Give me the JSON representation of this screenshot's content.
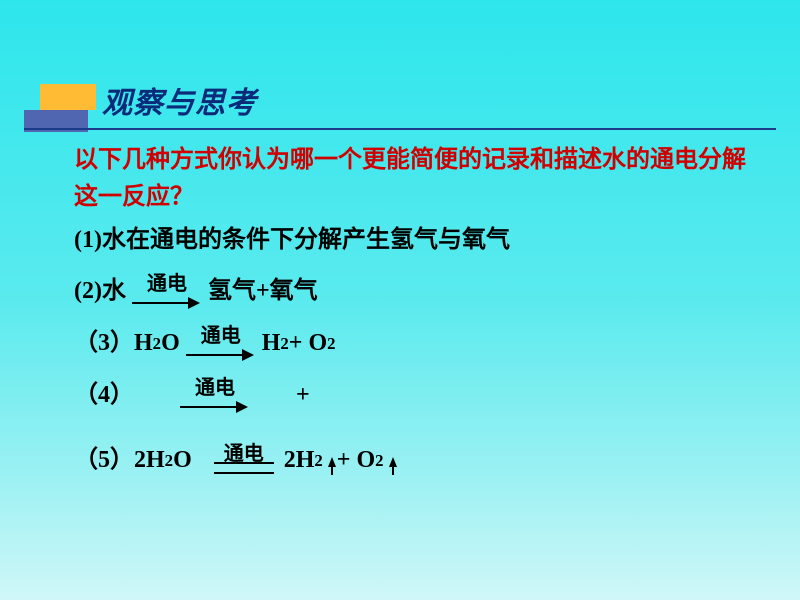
{
  "colors": {
    "bg_gradient_start": "#2de6ec",
    "bg_gradient_end": "#d0f7f8",
    "title_color": "#0a2a7a",
    "prompt_color": "#d00000",
    "body_color": "#000000",
    "deco_top": "#ffbb33",
    "deco_bottom": "#5166b0",
    "rule_color": "#1a3a8a"
  },
  "typography": {
    "title_fontsize": 30,
    "prompt_fontsize": 24,
    "body_fontsize": 24,
    "arrow_label_fontsize": 20,
    "title_font": "KaiTi",
    "body_font": "SimSun"
  },
  "title": "观察与思考",
  "prompt": "以下几种方式你认为哪一个更能简便的记录和描述水的通电分解这一反应？",
  "arrow_label": "通电",
  "items": {
    "i1": {
      "num": "(1)",
      "text": "水在通电的条件下分解产生氢气与氧气"
    },
    "i2": {
      "num": "(2)",
      "pre": " 水 ",
      "post": " 氢气+氧气"
    },
    "i3": {
      "num": "（3）",
      "pre_a": "H",
      "pre_b": "O ",
      "post_a": "H",
      "post_b": " +  O",
      "sub2": "2"
    },
    "i4": {
      "num": "（4）",
      "plus": "+"
    },
    "i5": {
      "num": "（5）",
      "pre_a": "2H",
      "pre_b": "O ",
      "post_a": " 2H",
      "post_b": "+  O",
      "sub2": "2"
    }
  }
}
